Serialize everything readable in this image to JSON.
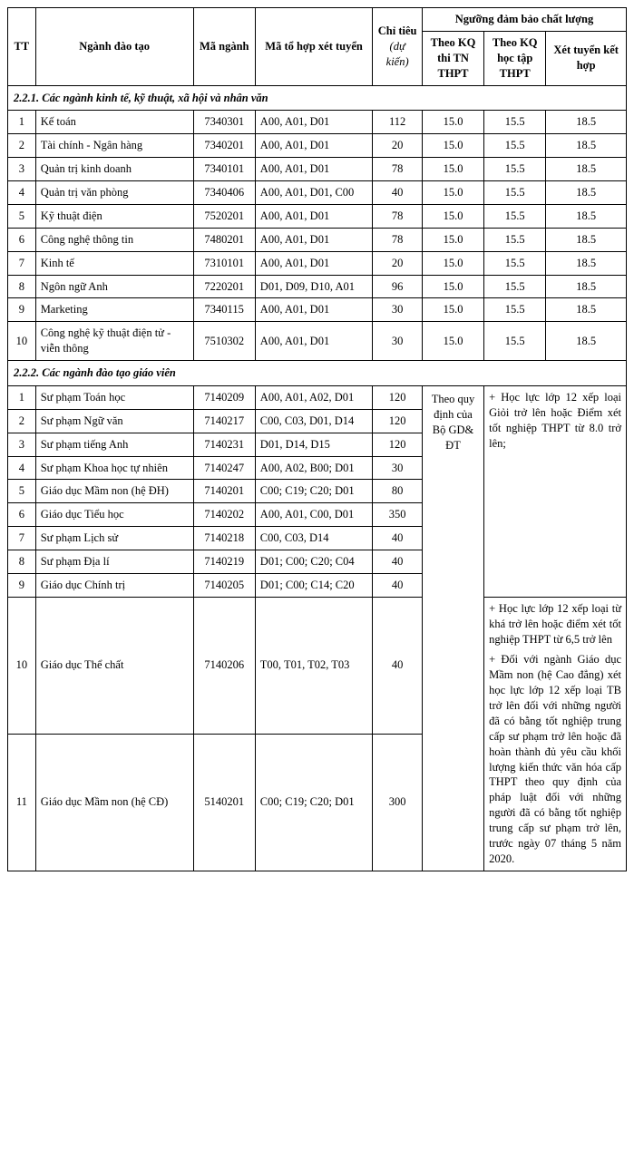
{
  "header": {
    "tt": "TT",
    "name": "Ngành đào tạo",
    "code": "Mã ngành",
    "combo": "Mã tổ hợp xét tuyển",
    "quota": "Chỉ tiêu",
    "quota_note": "(dự kiến)",
    "group": "Ngưỡng đảm bảo chất lượng",
    "s1": "Theo KQ thi TN THPT",
    "s2": "Theo KQ học tập THPT",
    "s3": "Xét tuyển kết hợp"
  },
  "section1": "2.2.1. Các ngành kinh tế, kỹ thuật, xã hội và nhân văn",
  "rows1": [
    {
      "tt": "1",
      "name": "Kế toán",
      "code": "7340301",
      "combo": "A00, A01, D01",
      "quota": "112",
      "s1": "15.0",
      "s2": "15.5",
      "s3": "18.5"
    },
    {
      "tt": "2",
      "name": "Tài chính - Ngân hàng",
      "code": "7340201",
      "combo": "A00, A01, D01",
      "quota": "20",
      "s1": "15.0",
      "s2": "15.5",
      "s3": "18.5"
    },
    {
      "tt": "3",
      "name": "Quản trị kinh doanh",
      "code": "7340101",
      "combo": "A00, A01, D01",
      "quota": "78",
      "s1": "15.0",
      "s2": "15.5",
      "s3": "18.5"
    },
    {
      "tt": "4",
      "name": "Quản trị văn phòng",
      "code": "7340406",
      "combo": "A00, A01, D01, C00",
      "quota": "40",
      "s1": "15.0",
      "s2": "15.5",
      "s3": "18.5"
    },
    {
      "tt": "5",
      "name": "Kỹ thuật điện",
      "code": "7520201",
      "combo": "A00, A01, D01",
      "quota": "78",
      "s1": "15.0",
      "s2": "15.5",
      "s3": "18.5"
    },
    {
      "tt": "6",
      "name": "Công nghệ thông tin",
      "code": "7480201",
      "combo": "A00, A01, D01",
      "quota": "78",
      "s1": "15.0",
      "s2": "15.5",
      "s3": "18.5"
    },
    {
      "tt": "7",
      "name": "Kinh tế",
      "code": "7310101",
      "combo": "A00, A01, D01",
      "quota": "20",
      "s1": "15.0",
      "s2": "15.5",
      "s3": "18.5"
    },
    {
      "tt": "8",
      "name": "Ngôn ngữ Anh",
      "code": "7220201",
      "combo": "D01, D09, D10, A01",
      "quota": "96",
      "s1": "15.0",
      "s2": "15.5",
      "s3": "18.5"
    },
    {
      "tt": "9",
      "name": "Marketing",
      "code": "7340115",
      "combo": "A00, A01, D01",
      "quota": "30",
      "s1": "15.0",
      "s2": "15.5",
      "s3": "18.5"
    },
    {
      "tt": "10",
      "name": "Công nghệ kỹ thuật điện tử - viễn thông",
      "code": "7510302",
      "combo": "A00, A01, D01",
      "quota": "30",
      "s1": "15.0",
      "s2": "15.5",
      "s3": "18.5"
    }
  ],
  "section2": "2.2.2. Các ngành đào tạo giáo viên",
  "rows2": [
    {
      "tt": "1",
      "name": "Sư phạm Toán học",
      "code": "7140209",
      "combo": "A00, A01, A02, D01",
      "quota": "120"
    },
    {
      "tt": "2",
      "name": "Sư phạm Ngữ văn",
      "code": "7140217",
      "combo": "C00, C03, D01, D14",
      "quota": "120"
    },
    {
      "tt": "3",
      "name": "Sư phạm tiếng Anh",
      "code": "7140231",
      "combo": "D01, D14, D15",
      "quota": "120"
    },
    {
      "tt": "4",
      "name": "Sư phạm Khoa học tự nhiên",
      "code": "7140247",
      "combo": "A00, A02, B00; D01",
      "quota": "30"
    },
    {
      "tt": "5",
      "name": "Giáo dục Mầm non (hệ ĐH)",
      "code": "7140201",
      "combo": "C00; C19; C20; D01",
      "quota": "80"
    },
    {
      "tt": "6",
      "name": "Giáo dục Tiểu học",
      "code": "7140202",
      "combo": "A00, A01, C00, D01",
      "quota": "350"
    },
    {
      "tt": "7",
      "name": "Sư phạm Lịch sử",
      "code": "7140218",
      "combo": "C00, C03, D14",
      "quota": "40"
    },
    {
      "tt": "8",
      "name": "Sư phạm Địa lí",
      "code": "7140219",
      "combo": "D01; C00; C20; C04",
      "quota": "40"
    },
    {
      "tt": "9",
      "name": "Giáo dục Chính trị",
      "code": "7140205",
      "combo": "D01; C00; C14; C20",
      "quota": "40"
    },
    {
      "tt": "10",
      "name": "Giáo dục Thể chất",
      "code": "7140206",
      "combo": "T00, T01, T02, T03",
      "quota": "40"
    },
    {
      "tt": "11",
      "name": "Giáo dục Mầm non (hệ CĐ)",
      "code": "5140201",
      "combo": "C00; C19; C20; D01",
      "quota": "300"
    }
  ],
  "merge_s1": "Theo quy định của Bộ GD& ĐT",
  "merge_note_top": "+ Học lực lớp 12 xếp loại Giỏi trở lên hoặc Điểm xét tốt nghiệp THPT từ 8.0 trở lên;",
  "merge_note_bottom_a": "+ Học lực lớp 12 xếp loại từ khá trở lên hoặc điểm xét tốt nghiệp THPT từ 6,5 trở lên",
  "merge_note_bottom_b": "+ Đối với ngành Giáo dục Mầm non (hệ Cao đẳng) xét học lực lớp 12 xếp loại TB trở lên đối với những người đã có bằng tốt nghiệp trung cấp sư phạm trở lên hoặc đã hoàn thành đủ yêu cầu khối lượng kiến thức văn hóa cấp THPT theo quy định của pháp luật đối với những người đã có bằng tốt nghiệp trung cấp sư phạm trở lên, trước ngày 07 tháng 5 năm 2020."
}
